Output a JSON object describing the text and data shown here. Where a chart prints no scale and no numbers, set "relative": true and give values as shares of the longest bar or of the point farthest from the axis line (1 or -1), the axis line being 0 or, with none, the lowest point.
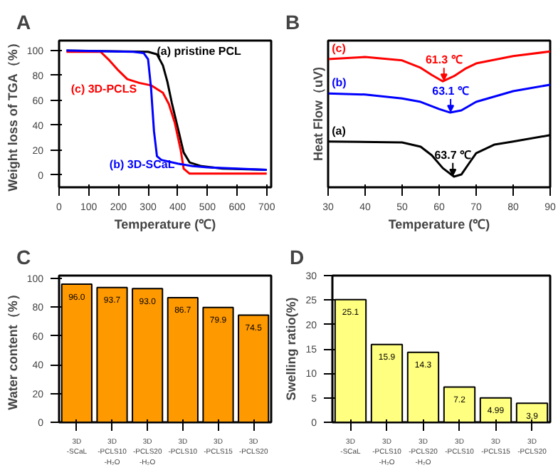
{
  "chart_data": [
    {
      "type": "line",
      "title": "A",
      "xlabel": "Temperature (℃)",
      "ylabel": "Weight loss of TGA（%）",
      "xlim": [
        0,
        715
      ],
      "ylim": [
        -10,
        108
      ],
      "xticks": [
        0,
        100,
        200,
        300,
        400,
        500,
        600,
        700
      ],
      "yticks": [
        0,
        20,
        40,
        60,
        80,
        100
      ],
      "series": [
        {
          "name": "(a) pristine PCL",
          "color": "#000000",
          "x": [
            25,
            300,
            330,
            350,
            365,
            380,
            400,
            420,
            440,
            480,
            550,
            700
          ],
          "values": [
            100,
            99,
            97,
            88,
            75,
            58,
            38,
            18,
            10,
            7,
            5,
            4
          ]
        },
        {
          "name": "(c) 3D-PCLS",
          "color": "#ff0000",
          "x": [
            25,
            140,
            170,
            200,
            230,
            270,
            310,
            350,
            370,
            390,
            410,
            420,
            440,
            500,
            700
          ],
          "values": [
            99,
            99,
            92,
            84,
            77,
            74,
            72,
            66,
            57,
            42,
            20,
            5,
            1,
            1,
            1
          ]
        },
        {
          "name": "(b) 3D-SCaL",
          "color": "#0000ff",
          "x": [
            25,
            250,
            285,
            300,
            310,
            320,
            330,
            345,
            400,
            450,
            500,
            700
          ],
          "values": [
            100,
            99,
            98,
            93,
            70,
            35,
            15,
            12,
            9,
            7,
            6,
            4
          ]
        }
      ]
    },
    {
      "type": "line",
      "title": "B",
      "xlabel": "Temperature (℃)",
      "ylabel": "Heat Flow（uV)",
      "relative": true,
      "xlim": [
        30,
        90
      ],
      "xticks": [
        30,
        40,
        50,
        60,
        70,
        80,
        90
      ],
      "series": [
        {
          "name": "(c)",
          "color": "#ff0000",
          "x": [
            30,
            40,
            50,
            55,
            58,
            61,
            64,
            67,
            70,
            80,
            90
          ],
          "values": [
            0.944,
            0.959,
            0.934,
            0.88,
            0.827,
            0.78,
            0.818,
            0.872,
            0.912,
            0.966,
            1.0
          ]
        },
        {
          "name": "(b)",
          "color": "#0000ff",
          "x": [
            30,
            40,
            50,
            55,
            60,
            63,
            66,
            70,
            80,
            90
          ],
          "values": [
            0.691,
            0.683,
            0.654,
            0.629,
            0.576,
            0.55,
            0.566,
            0.629,
            0.708,
            0.755
          ]
        },
        {
          "name": "(a)",
          "color": "#000000",
          "x": [
            30,
            50,
            55,
            58,
            61,
            64,
            66,
            68,
            70,
            75,
            80,
            90
          ],
          "values": [
            0.337,
            0.33,
            0.299,
            0.236,
            0.141,
            0.079,
            0.094,
            0.173,
            0.251,
            0.315,
            0.337,
            0.384
          ]
        }
      ],
      "annotations": [
        {
          "text": "61.3 ℃",
          "x": 61.3,
          "y": 0.78
        },
        {
          "text": "63.1 ℃",
          "x": 63.1,
          "y": 0.55
        },
        {
          "text": "63.7 ℃",
          "x": 63.7,
          "y": 0.079
        }
      ]
    },
    {
      "type": "bar",
      "title": "C",
      "ylabel": "Water content（%）",
      "categories": [
        "3D\n-SCaL",
        "3D\n-PCLS10\n-H₂O",
        "3D\n-PCLS20\n-H₂O",
        "3D\n-PCLS10",
        "3D\n-PCLS15",
        "3D\n-PCLS20"
      ],
      "values": [
        96.0,
        93.7,
        93.0,
        86.7,
        79.9,
        74.5
      ],
      "value_labels": [
        "96.0",
        "93.7",
        "93.0",
        "86.7",
        "79.9",
        "74.5"
      ],
      "color": "#ff9900",
      "ylim": [
        0,
        102
      ],
      "yticks": [
        0,
        20,
        40,
        60,
        80,
        100
      ]
    },
    {
      "type": "bar",
      "title": "D",
      "ylabel": "Swelling ratio(%)",
      "categories": [
        "3D\n-SCaL",
        "3D\n-PCLS10\n-H₂O",
        "3D\n-PCLS20\n-H₂O",
        "3D\n-PCLS10",
        "3D\n-PCLS15",
        "3D\n-PCLS20"
      ],
      "values": [
        25.1,
        15.9,
        14.3,
        7.2,
        4.99,
        3.9
      ],
      "value_labels": [
        "25.1",
        "15.9",
        "14.3",
        "7.2",
        "4.99",
        "3.9"
      ],
      "color": "#ffff80",
      "ylim": [
        0,
        30
      ],
      "yticks": [
        0,
        5,
        10,
        15,
        20,
        25,
        30
      ]
    }
  ]
}
